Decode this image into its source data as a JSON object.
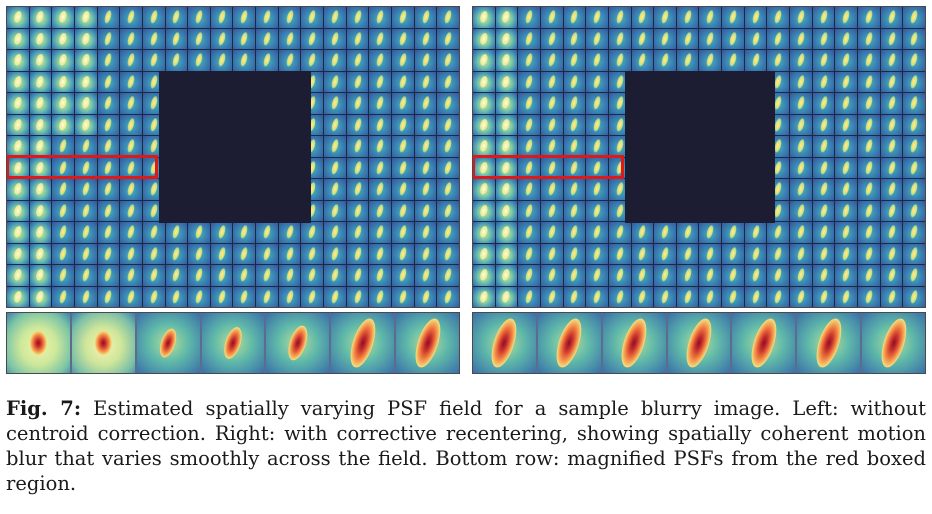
{
  "figure": {
    "label": "Fig. 7:",
    "caption": "Estimated spatially varying PSF field for a sample blurry image. Left: without centroid correction. Right: with corrective recentering, showing spatially coherent motion blur that varies smoothly across the field. Bottom row: magnified PSFs from the red boxed region."
  },
  "panels": [
    {
      "side": "left",
      "description": "without centroid correction",
      "grid_cols": 20,
      "grid_rows": 14,
      "magnified_count": 7
    },
    {
      "side": "right",
      "description": "with corrective recentering",
      "grid_cols": 20,
      "grid_rows": 14,
      "magnified_count": 7
    }
  ],
  "colors": {
    "highlight_box": "#e01818",
    "masked_region": "#1c1d33"
  }
}
